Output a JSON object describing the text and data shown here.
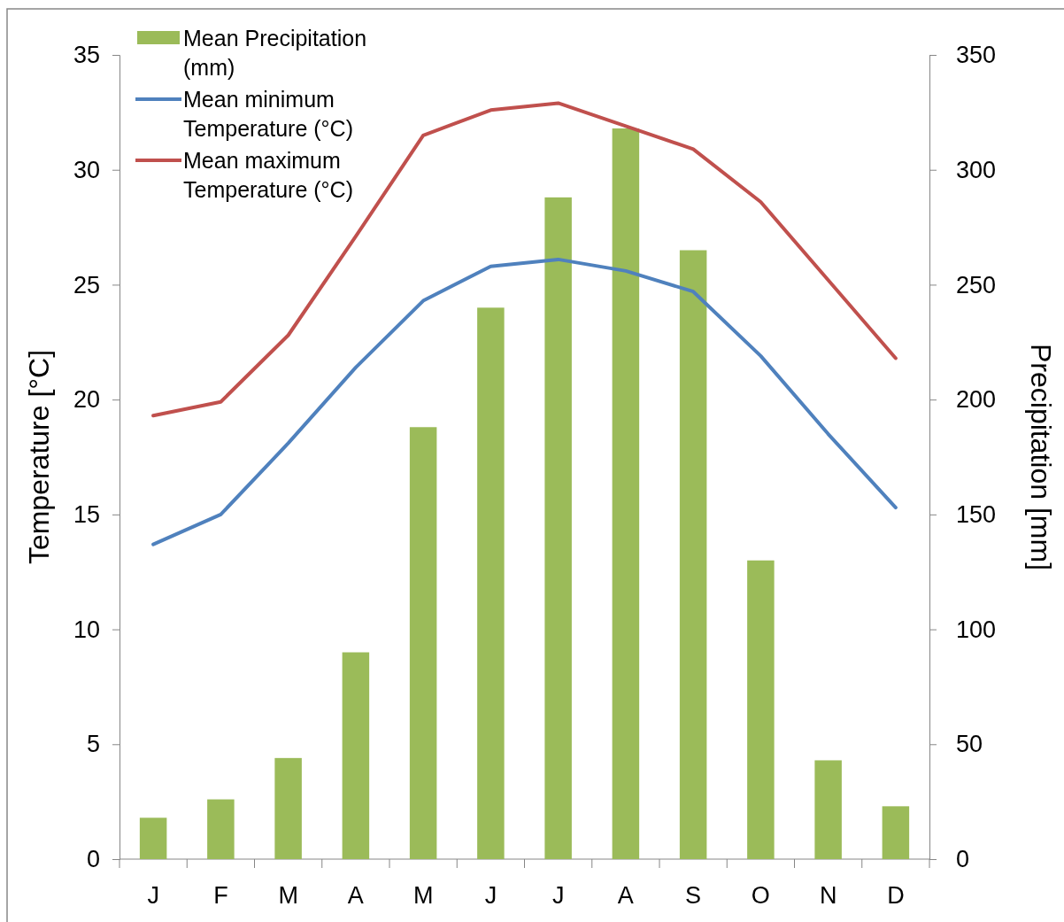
{
  "chart_data": {
    "type": "bar",
    "xlabel": null,
    "ylabel": "Temperature [°C]",
    "y2label": "Precipitation [mm]",
    "categories": [
      "J",
      "F",
      "M",
      "A",
      "M",
      "J",
      "J",
      "A",
      "S",
      "O",
      "N",
      "D"
    ],
    "series": [
      {
        "name": "Mean Precipitation (mm)",
        "axis": "y2",
        "color": "#9bbb59",
        "values": [
          18,
          26,
          44,
          90,
          188,
          240,
          288,
          318,
          265,
          130,
          43,
          23
        ]
      },
      {
        "name": "Mean minimum Temperature (°C)",
        "type": "line",
        "color": "#4f81bd",
        "values": [
          13.7,
          15.0,
          18.1,
          21.4,
          24.3,
          25.8,
          26.1,
          25.6,
          24.7,
          21.9,
          18.5,
          15.3
        ]
      },
      {
        "name": "Mean maximum Temperature (°C)",
        "type": "line",
        "color": "#c0504d",
        "values": [
          19.3,
          19.9,
          22.8,
          27.1,
          31.5,
          32.6,
          32.9,
          31.9,
          30.9,
          28.6,
          25.2,
          21.8
        ]
      }
    ],
    "ylim": [
      0,
      35
    ],
    "yticks": [
      0,
      5,
      10,
      15,
      20,
      25,
      30,
      35
    ],
    "y2lim": [
      0,
      350
    ],
    "y2ticks": [
      0,
      50,
      100,
      150,
      200,
      250,
      300,
      350
    ],
    "legend": "top left",
    "grid": false,
    "marker": "none",
    "line_style": "solid"
  }
}
